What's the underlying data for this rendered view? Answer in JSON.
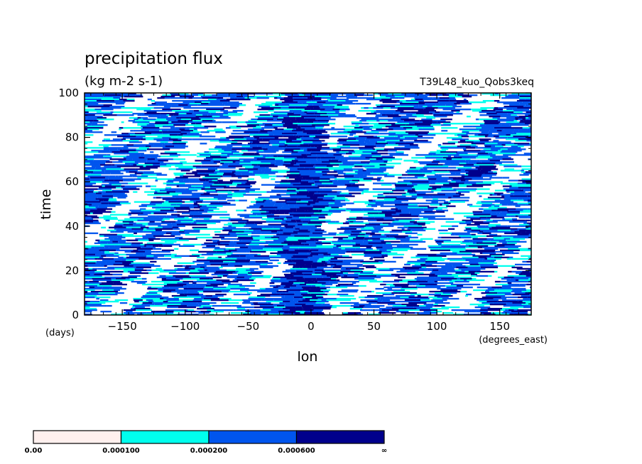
{
  "chart_data": {
    "type": "heatmap",
    "title": "precipitation flux",
    "units": "(kg m-2 s-1)",
    "run_label": "T39L48_kuo_Qobs3keq",
    "xlabel": "lon",
    "xunits": "(degrees_east)",
    "ylabel": "time",
    "yunits": "(days)",
    "xlim": [
      -180,
      175
    ],
    "ylim": [
      0,
      100
    ],
    "xticks": [
      -150,
      -100,
      -50,
      0,
      50,
      100,
      150
    ],
    "yticks": [
      0,
      20,
      40,
      60,
      80,
      100
    ],
    "xtick_labels": [
      "−150",
      "−100",
      "−50",
      "0",
      "50",
      "100",
      "150"
    ],
    "ytick_labels": [
      "0",
      "20",
      "40",
      "60",
      "80",
      "100"
    ],
    "colorbar": {
      "boundaries": [
        0.0,
        0.0001,
        0.0002,
        0.0006,
        "∞"
      ],
      "labels": [
        "0.00",
        "0.000100",
        "0.000200",
        "0.000600",
        "∞"
      ],
      "colors": [
        "#fff0ee",
        "#00ffee",
        "#0055ee",
        "#00008c"
      ]
    },
    "features": {
      "convective_band_center_lon": -5,
      "white_region_color": "#ffffff"
    }
  }
}
